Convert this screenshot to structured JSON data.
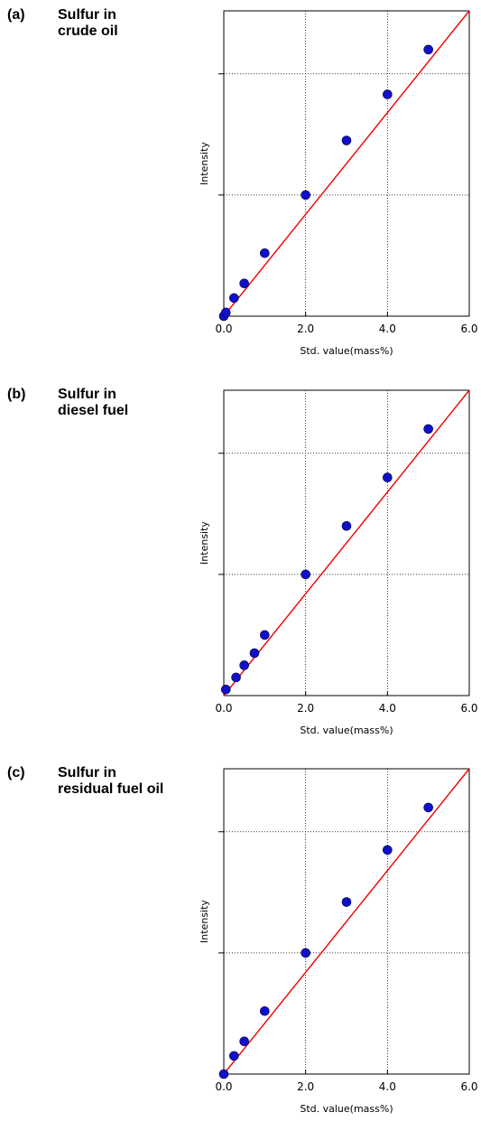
{
  "chart_data": [
    {
      "panel": "(a)",
      "caption_line1": "Sulfur in",
      "caption_line2": "crude oil",
      "type": "scatter",
      "xlabel": "Std. value(mass%)",
      "ylabel": "Intensity",
      "xlim": [
        0,
        6
      ],
      "xticks": [
        "0.0",
        "2.0",
        "4.0",
        "6.0"
      ],
      "grid": true,
      "series": [
        {
          "points": [
            [
              0.0,
              0.0
            ],
            [
              0.05,
              0.03
            ],
            [
              0.25,
              0.15
            ],
            [
              0.5,
              0.27
            ],
            [
              1.0,
              0.52
            ],
            [
              2.0,
              1.0
            ],
            [
              3.0,
              1.45
            ],
            [
              4.0,
              1.83
            ],
            [
              5.0,
              2.2
            ]
          ],
          "color": "#1010cc"
        },
        {
          "line": [
            [
              0.0,
              0.0
            ],
            [
              6.0,
              2.52
            ]
          ],
          "color": "#ee0000"
        }
      ]
    },
    {
      "panel": "(b)",
      "caption_line1": "Sulfur in",
      "caption_line2": "diesel fuel",
      "type": "scatter",
      "xlabel": "Std. value(mass%)",
      "ylabel": "Intensity",
      "xlim": [
        0,
        6
      ],
      "xticks": [
        "0.0",
        "2.0",
        "4.0",
        "6.0"
      ],
      "grid": true,
      "series": [
        {
          "points": [
            [
              0.05,
              0.05
            ],
            [
              0.3,
              0.15
            ],
            [
              0.5,
              0.25
            ],
            [
              0.75,
              0.35
            ],
            [
              1.0,
              0.5
            ],
            [
              2.0,
              1.0
            ],
            [
              3.0,
              1.4
            ],
            [
              4.0,
              1.8
            ],
            [
              5.0,
              2.2
            ]
          ],
          "color": "#1010cc"
        },
        {
          "line": [
            [
              0.0,
              0.0
            ],
            [
              6.0,
              2.52
            ]
          ],
          "color": "#ee0000"
        }
      ]
    },
    {
      "panel": "(c)",
      "caption_line1": "Sulfur in",
      "caption_line2": "residual fuel oil",
      "type": "scatter",
      "xlabel": "Std. value(mass%)",
      "ylabel": "Intensity",
      "xlim": [
        0,
        6
      ],
      "xticks": [
        "0.0",
        "2.0",
        "4.0",
        "6.0"
      ],
      "grid": true,
      "series": [
        {
          "points": [
            [
              0.0,
              0.0
            ],
            [
              0.25,
              0.15
            ],
            [
              0.5,
              0.27
            ],
            [
              1.0,
              0.52
            ],
            [
              2.0,
              1.0
            ],
            [
              3.0,
              1.42
            ],
            [
              4.0,
              1.85
            ],
            [
              5.0,
              2.2
            ]
          ],
          "color": "#1010cc"
        },
        {
          "line": [
            [
              0.0,
              0.0
            ],
            [
              6.0,
              2.52
            ]
          ],
          "color": "#ee0000"
        }
      ]
    }
  ]
}
